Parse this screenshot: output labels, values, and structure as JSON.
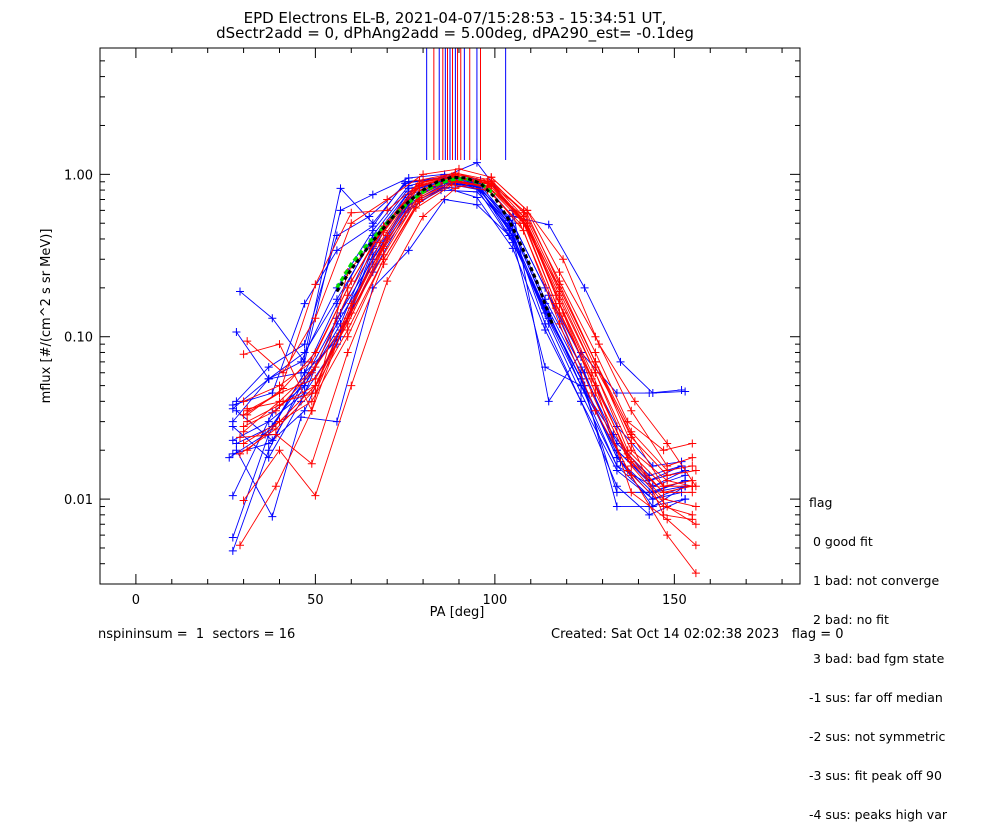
{
  "title_line1": "EPD Electrons EL-B, 2021-04-07/15:28:53 - 15:34:51 UT,",
  "title_line2": "dSectr2add = 0, dPhAng2add = 5.00deg, dPA290_est=  -0.1deg",
  "footer": {
    "left": "nspininsum =  1  sectors = 16",
    "right": "Created: Sat Oct 14 02:02:38 2023   flag = 0"
  },
  "flag_legend": {
    "title": "flag",
    "entries": [
      " 0 good fit",
      " 1 bad: not converge",
      " 2 bad: no fit",
      " 3 bad: bad fgm state",
      "-1 sus: far off median",
      "-2 sus: not symmetric",
      "-3 sus: fit peak off 90",
      "-4 sus: peaks high var"
    ]
  },
  "colors": {
    "red": "#ff0000",
    "blue": "#0000ff",
    "green": "#00dd00",
    "black": "#000000",
    "purple": "#8000a0"
  },
  "chart_data": {
    "type": "line",
    "xlabel": "PA [deg]",
    "ylabel": "mflux [#/(cm^2 s sr MeV)]",
    "xlim": [
      -10,
      185
    ],
    "ylim": [
      0.003,
      6.0
    ],
    "yscale": "log",
    "x_ticks": [
      0,
      50,
      100,
      150
    ],
    "y_ticks": [
      0.01,
      0.1,
      1.0
    ],
    "y_tick_labels": [
      "0.01",
      "0.10",
      "1.00"
    ],
    "series": [
      {
        "color": "blue",
        "x": [
          27,
          37,
          47,
          56,
          66,
          76,
          86,
          95,
          105,
          115,
          125,
          135,
          144,
          153
        ],
        "y": [
          0.0058,
          0.025,
          0.06,
          0.16,
          0.42,
          0.82,
          0.92,
          0.82,
          0.38,
          0.13,
          0.05,
          0.017,
          0.009,
          0.012
        ]
      },
      {
        "color": "blue",
        "x": [
          27,
          37,
          47,
          57,
          66,
          76,
          86,
          95,
          104,
          114,
          124,
          134,
          143,
          153
        ],
        "y": [
          0.0048,
          0.02,
          0.055,
          0.14,
          0.38,
          0.72,
          0.88,
          0.85,
          0.46,
          0.15,
          0.055,
          0.018,
          0.011,
          0.013
        ]
      },
      {
        "color": "blue",
        "x": [
          27,
          38,
          47,
          56,
          66,
          75,
          85,
          95,
          104,
          114,
          125,
          134,
          144,
          153
        ],
        "y": [
          0.0105,
          0.034,
          0.05,
          0.12,
          0.28,
          0.58,
          0.82,
          0.86,
          0.52,
          0.17,
          0.06,
          0.02,
          0.012,
          0.014
        ]
      },
      {
        "color": "blue",
        "x": [
          26,
          36,
          46,
          56,
          66,
          76,
          85,
          95,
          105,
          115,
          124,
          134,
          143,
          152
        ],
        "y": [
          0.018,
          0.025,
          0.05,
          0.1,
          0.32,
          0.66,
          0.85,
          0.9,
          0.5,
          0.18,
          0.065,
          0.022,
          0.014,
          0.016
        ]
      },
      {
        "color": "blue",
        "x": [
          27,
          37,
          47,
          57,
          66,
          76,
          85,
          95,
          105,
          115,
          124,
          134,
          144,
          153
        ],
        "y": [
          0.019,
          0.022,
          0.035,
          0.11,
          0.25,
          0.62,
          0.8,
          0.78,
          0.45,
          0.14,
          0.05,
          0.016,
          0.01,
          0.012
        ]
      },
      {
        "color": "blue",
        "x": [
          27,
          37,
          46,
          56,
          66,
          76,
          86,
          95,
          104,
          114,
          124,
          134,
          144,
          152
        ],
        "y": [
          0.028,
          0.018,
          0.04,
          0.13,
          0.3,
          0.7,
          0.88,
          0.84,
          0.55,
          0.2,
          0.075,
          0.028,
          0.016,
          0.017
        ]
      },
      {
        "color": "blue",
        "x": [
          27,
          37,
          46,
          56,
          66,
          76,
          85,
          94,
          104,
          114,
          124,
          133,
          143,
          153
        ],
        "y": [
          0.036,
          0.055,
          0.07,
          0.2,
          0.45,
          0.85,
          0.95,
          0.9,
          0.48,
          0.065,
          0.05,
          0.025,
          0.013,
          0.015
        ]
      },
      {
        "color": "blue",
        "x": [
          28,
          38,
          47,
          57,
          66,
          76,
          85,
          95,
          104,
          114,
          124,
          134,
          144,
          152
        ],
        "y": [
          0.035,
          0.023,
          0.05,
          0.12,
          0.36,
          0.78,
          0.92,
          0.88,
          0.5,
          0.12,
          0.04,
          0.015,
          0.01,
          0.011
        ]
      },
      {
        "color": "blue",
        "x": [
          27,
          37,
          47,
          56,
          66,
          76,
          86,
          95,
          105,
          114,
          124,
          134,
          143,
          153
        ],
        "y": [
          0.023,
          0.03,
          0.045,
          0.09,
          0.3,
          0.65,
          0.83,
          0.72,
          0.35,
          0.11,
          0.04,
          0.012,
          0.008,
          0.01
        ]
      },
      {
        "color": "blue",
        "x": [
          29,
          38,
          47,
          57,
          66,
          76,
          86,
          96,
          105,
          115,
          125,
          135,
          144,
          153
        ],
        "y": [
          0.19,
          0.13,
          0.07,
          0.6,
          0.75,
          0.95,
          1.0,
          0.92,
          0.55,
          0.49,
          0.2,
          0.07,
          0.045,
          0.046
        ]
      },
      {
        "color": "blue",
        "x": [
          28,
          37,
          46,
          57,
          66,
          75,
          85,
          95,
          105,
          115,
          124,
          134,
          143,
          152
        ],
        "y": [
          0.107,
          0.055,
          0.06,
          0.82,
          0.5,
          0.88,
          0.95,
          1.18,
          0.6,
          0.04,
          0.08,
          0.045,
          0.045,
          0.047
        ]
      },
      {
        "color": "blue",
        "x": [
          27,
          38,
          47,
          56,
          66,
          75,
          86,
          95,
          104,
          114,
          124,
          134,
          144,
          153
        ],
        "y": [
          0.038,
          0.045,
          0.16,
          0.34,
          0.48,
          0.9,
          0.96,
          0.88,
          0.42,
          0.15,
          0.055,
          0.011,
          0.011,
          0.013
        ]
      },
      {
        "color": "blue",
        "x": [
          28,
          37,
          47,
          56,
          65,
          76,
          85,
          94,
          104,
          114,
          124,
          134,
          143,
          153
        ],
        "y": [
          0.04,
          0.065,
          0.09,
          0.42,
          0.55,
          0.9,
          0.93,
          0.87,
          0.5,
          0.16,
          0.06,
          0.009,
          0.009,
          0.01
        ]
      },
      {
        "color": "blue",
        "x": [
          28,
          38,
          46,
          56,
          66,
          76,
          86,
          95,
          105,
          115,
          124,
          134,
          144,
          153
        ],
        "y": [
          0.02,
          0.0078,
          0.032,
          0.03,
          0.2,
          0.34,
          0.7,
          0.65,
          0.4,
          0.12,
          0.045,
          0.016,
          0.012,
          0.015
        ]
      },
      {
        "color": "blue",
        "x": [
          27,
          37,
          47,
          56,
          66,
          76,
          85,
          95,
          104,
          114,
          124,
          134,
          143,
          152
        ],
        "y": [
          0.03,
          0.055,
          0.08,
          0.17,
          0.4,
          0.78,
          0.9,
          0.85,
          0.45,
          0.14,
          0.05,
          0.02,
          0.013,
          0.016
        ]
      },
      {
        "color": "blue",
        "x": [
          28,
          38,
          47,
          57,
          66,
          76,
          86,
          96,
          105,
          115,
          125,
          134,
          144,
          153
        ],
        "y": [
          0.022,
          0.028,
          0.06,
          0.1,
          0.35,
          0.75,
          0.88,
          0.8,
          0.42,
          0.13,
          0.05,
          0.018,
          0.011,
          0.012
        ]
      },
      {
        "color": "red",
        "x": [
          29,
          39,
          49,
          58,
          68,
          78,
          88,
          98,
          108,
          118,
          128,
          138,
          148,
          156
        ],
        "y": [
          0.0052,
          0.012,
          0.035,
          0.12,
          0.38,
          0.82,
          0.97,
          0.88,
          0.52,
          0.14,
          0.05,
          0.011,
          0.0075,
          0.0052
        ]
      },
      {
        "color": "red",
        "x": [
          30,
          40,
          49,
          59,
          69,
          79,
          89,
          98,
          108,
          118,
          128,
          137,
          147,
          155
        ],
        "y": [
          0.078,
          0.09,
          0.035,
          0.25,
          0.45,
          0.92,
          1.02,
          0.9,
          0.6,
          0.22,
          0.08,
          0.03,
          0.02,
          0.022
        ]
      },
      {
        "color": "red",
        "x": [
          31,
          41,
          50,
          60,
          70,
          80,
          90,
          99,
          109,
          119,
          129,
          139,
          148,
          156
        ],
        "y": [
          0.094,
          0.06,
          0.13,
          0.5,
          0.7,
          1.0,
          1.08,
          0.96,
          0.6,
          0.3,
          0.09,
          0.04,
          0.022,
          0.012
        ]
      },
      {
        "color": "red",
        "x": [
          30,
          40,
          50,
          60,
          70,
          79,
          89,
          99,
          108,
          118,
          128,
          138,
          147,
          155
        ],
        "y": [
          0.033,
          0.045,
          0.21,
          0.58,
          0.6,
          0.88,
          0.98,
          0.86,
          0.5,
          0.2,
          0.07,
          0.022,
          0.008,
          0.0075
        ]
      },
      {
        "color": "red",
        "x": [
          31,
          40,
          50,
          59,
          69,
          79,
          89,
          98,
          108,
          118,
          128,
          138,
          148,
          156
        ],
        "y": [
          0.035,
          0.045,
          0.055,
          0.12,
          0.35,
          0.72,
          0.92,
          0.82,
          0.45,
          0.12,
          0.035,
          0.014,
          0.006,
          0.0035
        ]
      },
      {
        "color": "red",
        "x": [
          30,
          40,
          49,
          59,
          69,
          79,
          88,
          98,
          108,
          117,
          127,
          137,
          147,
          155
        ],
        "y": [
          0.022,
          0.03,
          0.04,
          0.1,
          0.3,
          0.7,
          0.9,
          0.84,
          0.55,
          0.18,
          0.06,
          0.018,
          0.011,
          0.012
        ]
      },
      {
        "color": "red",
        "x": [
          29,
          39,
          49,
          59,
          69,
          78,
          88,
          98,
          107,
          117,
          127,
          137,
          147,
          155
        ],
        "y": [
          0.024,
          0.025,
          0.0165,
          0.08,
          0.28,
          0.62,
          0.86,
          0.8,
          0.5,
          0.15,
          0.045,
          0.015,
          0.009,
          0.008
        ]
      },
      {
        "color": "red",
        "x": [
          30,
          40,
          50,
          60,
          70,
          80,
          89,
          99,
          109,
          118,
          128,
          138,
          148,
          155
        ],
        "y": [
          0.0098,
          0.02,
          0.0105,
          0.05,
          0.22,
          0.55,
          0.82,
          0.96,
          0.6,
          0.25,
          0.1,
          0.035,
          0.016,
          0.018
        ]
      },
      {
        "color": "red",
        "x": [
          31,
          41,
          50,
          60,
          70,
          79,
          89,
          99,
          108,
          118,
          128,
          138,
          148,
          155
        ],
        "y": [
          0.036,
          0.04,
          0.045,
          0.15,
          0.42,
          0.85,
          0.97,
          0.88,
          0.52,
          0.17,
          0.06,
          0.02,
          0.013,
          0.012
        ]
      },
      {
        "color": "red",
        "x": [
          30,
          40,
          49,
          59,
          69,
          79,
          89,
          99,
          108,
          118,
          128,
          138,
          147,
          155
        ],
        "y": [
          0.04,
          0.05,
          0.07,
          0.2,
          0.48,
          0.88,
          1.0,
          0.9,
          0.55,
          0.19,
          0.065,
          0.025,
          0.012,
          0.013
        ]
      },
      {
        "color": "red",
        "x": [
          31,
          40,
          50,
          60,
          70,
          80,
          89,
          99,
          109,
          119,
          128,
          138,
          148,
          156
        ],
        "y": [
          0.02,
          0.03,
          0.05,
          0.16,
          0.4,
          0.8,
          0.95,
          0.86,
          0.48,
          0.14,
          0.045,
          0.016,
          0.009,
          0.007
        ]
      },
      {
        "color": "red",
        "x": [
          30,
          39,
          49,
          59,
          69,
          79,
          88,
          98,
          108,
          117,
          127,
          137,
          147,
          155
        ],
        "y": [
          0.028,
          0.035,
          0.06,
          0.13,
          0.32,
          0.74,
          0.93,
          0.84,
          0.5,
          0.16,
          0.055,
          0.019,
          0.011,
          0.011
        ]
      },
      {
        "color": "red",
        "x": [
          31,
          40,
          50,
          60,
          69,
          79,
          89,
          99,
          109,
          118,
          128,
          138,
          148,
          156
        ],
        "y": [
          0.03,
          0.038,
          0.05,
          0.14,
          0.36,
          0.8,
          0.96,
          0.9,
          0.57,
          0.21,
          0.07,
          0.024,
          0.014,
          0.015
        ]
      },
      {
        "color": "red",
        "x": [
          29,
          39,
          49,
          59,
          69,
          79,
          89,
          98,
          108,
          118,
          128,
          137,
          147,
          155
        ],
        "y": [
          0.019,
          0.027,
          0.045,
          0.11,
          0.3,
          0.68,
          0.9,
          0.85,
          0.52,
          0.18,
          0.06,
          0.02,
          0.012,
          0.012
        ]
      },
      {
        "color": "red",
        "x": [
          30,
          40,
          50,
          59,
          69,
          79,
          89,
          99,
          109,
          118,
          128,
          138,
          147,
          156
        ],
        "y": [
          0.026,
          0.04,
          0.065,
          0.18,
          0.44,
          0.86,
          0.98,
          0.87,
          0.5,
          0.16,
          0.05,
          0.017,
          0.01,
          0.009
        ]
      },
      {
        "color": "red",
        "x": [
          31,
          41,
          50,
          60,
          70,
          80,
          89,
          99,
          108,
          118,
          128,
          138,
          148,
          155
        ],
        "y": [
          0.033,
          0.048,
          0.08,
          0.22,
          0.5,
          0.9,
          1.02,
          0.92,
          0.58,
          0.2,
          0.07,
          0.026,
          0.015,
          0.016
        ]
      }
    ],
    "fit_green": {
      "x": [
        56,
        60,
        64,
        68,
        72,
        76,
        80,
        84,
        88,
        92,
        96,
        100
      ],
      "y": [
        0.2,
        0.28,
        0.36,
        0.45,
        0.56,
        0.67,
        0.78,
        0.87,
        0.93,
        0.94,
        0.88,
        0.75
      ]
    },
    "fit_black": {
      "x": [
        56,
        60,
        64,
        68,
        72,
        76,
        80,
        84,
        88,
        92,
        96,
        100,
        104,
        108,
        112,
        116
      ],
      "y": [
        0.19,
        0.26,
        0.34,
        0.44,
        0.56,
        0.68,
        0.8,
        0.9,
        0.96,
        0.95,
        0.88,
        0.72,
        0.52,
        0.34,
        0.21,
        0.12
      ]
    },
    "peak_markers": [
      {
        "x": 81,
        "color": "blue"
      },
      {
        "x": 83,
        "color": "red"
      },
      {
        "x": 84.5,
        "color": "blue"
      },
      {
        "x": 85.5,
        "color": "red"
      },
      {
        "x": 86.2,
        "color": "blue"
      },
      {
        "x": 86.8,
        "color": "red"
      },
      {
        "x": 87.5,
        "color": "blue"
      },
      {
        "x": 88.2,
        "color": "red"
      },
      {
        "x": 89,
        "color": "blue"
      },
      {
        "x": 89.6,
        "color": "red"
      },
      {
        "x": 90.5,
        "color": "red"
      },
      {
        "x": 91.5,
        "color": "blue"
      },
      {
        "x": 93,
        "color": "red"
      },
      {
        "x": 95,
        "color": "blue"
      },
      {
        "x": 96,
        "color": "red"
      },
      {
        "x": 103,
        "color": "blue"
      }
    ]
  }
}
